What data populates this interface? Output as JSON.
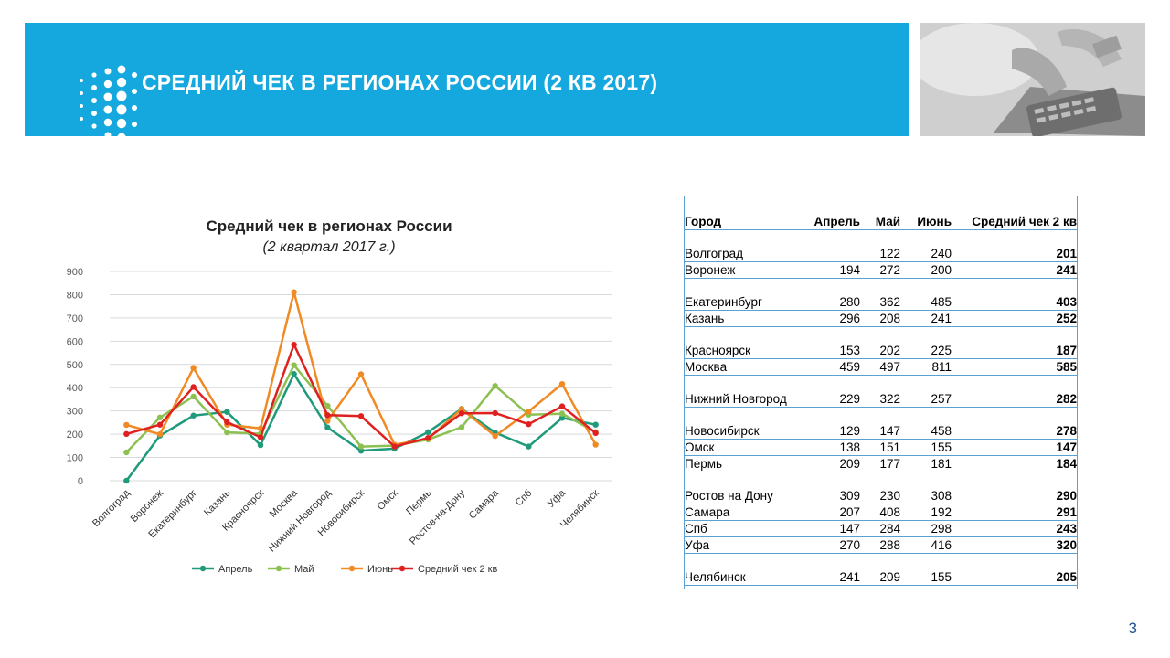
{
  "header": {
    "title": "СРЕДНИЙ ЧЕК В РЕГИОНАХ РОССИИ (2 КВ 2017)"
  },
  "page_number": "3",
  "colors": {
    "banner": "#14a8de",
    "april": "#1f9a7a",
    "may": "#8cc152",
    "june": "#f08a24",
    "avg": "#e02020"
  },
  "chart_data": {
    "type": "line",
    "title": "Средний чек в регионах России",
    "subtitle": "(2 квартал 2017 г.)",
    "xlabel": "",
    "ylabel": "",
    "ylim": [
      0,
      900
    ],
    "yticks": [
      0,
      100,
      200,
      300,
      400,
      500,
      600,
      700,
      800,
      900
    ],
    "grid": true,
    "legend_position": "bottom",
    "categories": [
      "Волгоград",
      "Воронеж",
      "Екатеринбург",
      "Казань",
      "Красноярск",
      "Москва",
      "Нижний Новгород",
      "Новосибирск",
      "Омск",
      "Пермь",
      "Ростов-на-Дону",
      "Самара",
      "Спб",
      "Уфа",
      "Челябинск"
    ],
    "series": [
      {
        "name": "Апрель",
        "color": "#1f9a7a",
        "values": [
          0,
          194,
          280,
          296,
          153,
          459,
          229,
          129,
          138,
          209,
          309,
          207,
          147,
          270,
          241
        ]
      },
      {
        "name": "Май",
        "color": "#8cc152",
        "values": [
          122,
          272,
          362,
          208,
          202,
          497,
          322,
          147,
          151,
          177,
          230,
          408,
          284,
          288,
          209
        ]
      },
      {
        "name": "Июнь",
        "color": "#f08a24",
        "values": [
          240,
          200,
          485,
          241,
          225,
          811,
          257,
          458,
          155,
          181,
          308,
          192,
          298,
          416,
          155
        ]
      },
      {
        "name": "Средний чек 2 кв",
        "color": "#e02020",
        "values": [
          201,
          241,
          403,
          252,
          187,
          585,
          282,
          278,
          147,
          184,
          290,
          291,
          243,
          320,
          205
        ]
      }
    ]
  },
  "table": {
    "headers": [
      "Город",
      "Апрель",
      "Май",
      "Июнь",
      "Средний чек 2 кв"
    ],
    "rows": [
      {
        "city": "Волгоград",
        "apr": "",
        "may": "122",
        "jun": "240",
        "avg": "201",
        "tall": true
      },
      {
        "city": "Воронеж",
        "apr": "194",
        "may": "272",
        "jun": "200",
        "avg": "241",
        "tall": false
      },
      {
        "city": "Екатеринбург",
        "apr": "280",
        "may": "362",
        "jun": "485",
        "avg": "403",
        "tall": true
      },
      {
        "city": "Казань",
        "apr": "296",
        "may": "208",
        "jun": "241",
        "avg": "252",
        "tall": false
      },
      {
        "city": "Красноярск",
        "apr": "153",
        "may": "202",
        "jun": "225",
        "avg": "187",
        "tall": true
      },
      {
        "city": "Москва",
        "apr": "459",
        "may": "497",
        "jun": "811",
        "avg": "585",
        "tall": false
      },
      {
        "city": "Нижний Новгород",
        "apr": "229",
        "may": "322",
        "jun": "257",
        "avg": "282",
        "tall": true
      },
      {
        "city": "Новосибирск",
        "apr": "129",
        "may": "147",
        "jun": "458",
        "avg": "278",
        "tall": true
      },
      {
        "city": "Омск",
        "apr": "138",
        "may": "151",
        "jun": "155",
        "avg": "147",
        "tall": false
      },
      {
        "city": "Пермь",
        "apr": "209",
        "may": "177",
        "jun": "181",
        "avg": "184",
        "tall": false
      },
      {
        "city": "Ростов на Дону",
        "apr": "309",
        "may": "230",
        "jun": "308",
        "avg": "290",
        "tall": true
      },
      {
        "city": "Самара",
        "apr": "207",
        "may": "408",
        "jun": "192",
        "avg": "291",
        "tall": false
      },
      {
        "city": "Спб",
        "apr": "147",
        "may": "284",
        "jun": "298",
        "avg": "243",
        "tall": false
      },
      {
        "city": "Уфа",
        "apr": "270",
        "may": "288",
        "jun": "416",
        "avg": "320",
        "tall": false
      },
      {
        "city": "Челябинск",
        "apr": "241",
        "may": "209",
        "jun": "155",
        "avg": "205",
        "tall": true
      }
    ]
  }
}
